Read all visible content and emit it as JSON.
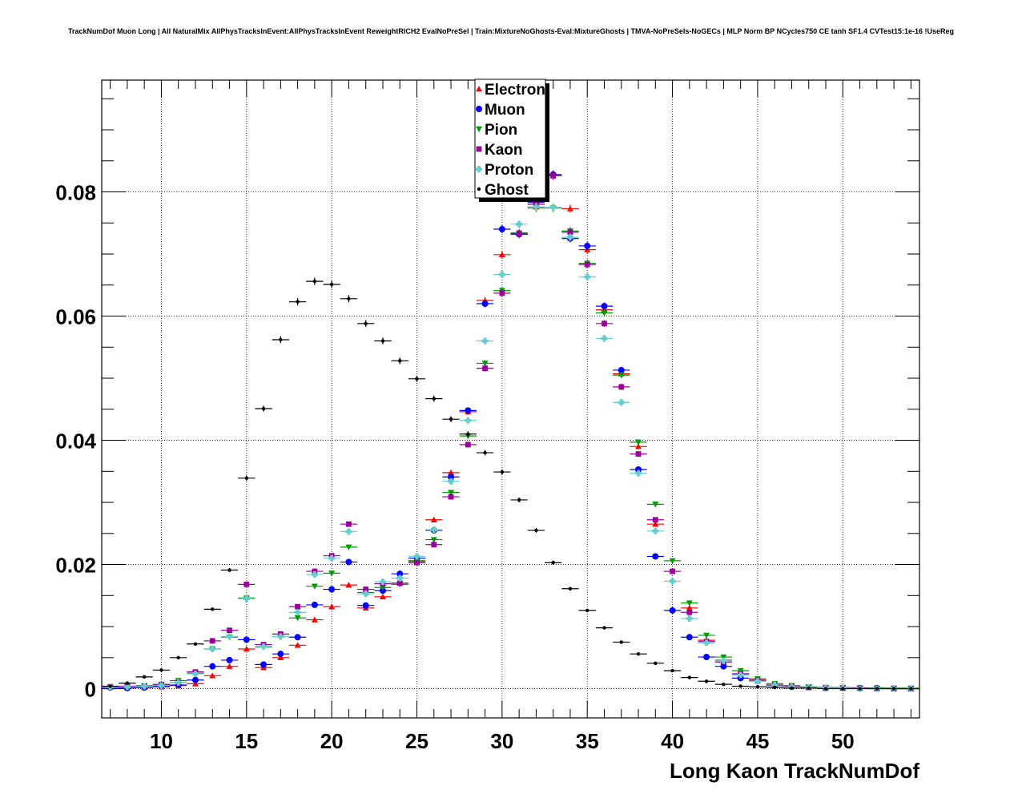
{
  "chart_data": {
    "type": "scatter",
    "title": "TrackNumDof Muon Long | All NaturalMix AllPhysTracksInEvent:AllPhysTracksInEvent ReweightRICH2 EvalNoPreSel | Train:MixtureNoGhosts-Eval:MixtureGhosts | TMVA-NoPreSels-NoGECs | MLP Norm BP NCycles750 CE tanh SF1.4 CVTest15:1e-16 !UseReg",
    "xlabel": "Long Kaon TrackNumDof",
    "ylabel": "",
    "xlim": [
      6.5,
      54.5
    ],
    "ylim": [
      -0.0047,
      0.098
    ],
    "x_ticks": [
      10,
      15,
      20,
      25,
      30,
      35,
      40,
      45,
      50
    ],
    "y_ticks": [
      0,
      0.02,
      0.04,
      0.06,
      0.08
    ],
    "y_tick_labels": [
      "0",
      "0.02",
      "0.04",
      "0.06",
      "0.08"
    ],
    "grid": true,
    "legend_position": "top-center",
    "x": [
      7,
      8,
      9,
      10,
      11,
      12,
      13,
      14,
      15,
      16,
      17,
      18,
      19,
      20,
      21,
      22,
      23,
      24,
      25,
      26,
      27,
      28,
      29,
      30,
      31,
      32,
      33,
      34,
      35,
      36,
      37,
      38,
      39,
      40,
      41,
      42,
      43,
      44,
      45,
      46,
      47,
      48,
      49,
      50,
      51,
      52,
      53,
      54
    ],
    "series": [
      {
        "name": "Electron",
        "color": "#ff0000",
        "marker": "triangle-up",
        "values": [
          0.0003,
          0.0002,
          0.0002,
          0.0003,
          0.0005,
          0.0008,
          0.0021,
          0.0036,
          0.0064,
          0.0034,
          0.005,
          0.007,
          0.0111,
          0.0132,
          0.0167,
          0.013,
          0.0148,
          0.017,
          0.0206,
          0.0272,
          0.0348,
          0.0446,
          0.0625,
          0.0699,
          0.0732,
          0.0776,
          0.0826,
          0.0773,
          0.0707,
          0.061,
          0.0507,
          0.039,
          0.0265,
          0.0189,
          0.013,
          0.0078,
          0.0046,
          0.0024,
          0.0014,
          0.0007,
          0.0004,
          0.0002,
          0.0002,
          0.0001,
          0.0001,
          0.0001,
          0.0001,
          0.0
        ]
      },
      {
        "name": "Muon",
        "color": "#0000ff",
        "marker": "circle",
        "values": [
          0.0002,
          0.0001,
          0.0002,
          0.0004,
          0.0006,
          0.0014,
          0.0036,
          0.0046,
          0.0079,
          0.0039,
          0.0056,
          0.0083,
          0.0135,
          0.016,
          0.0204,
          0.0134,
          0.0158,
          0.0185,
          0.021,
          0.0255,
          0.0341,
          0.0448,
          0.062,
          0.074,
          0.0732,
          0.0783,
          0.0828,
          0.0725,
          0.0713,
          0.0616,
          0.0513,
          0.0353,
          0.0213,
          0.0126,
          0.0083,
          0.0051,
          0.0036,
          0.0017,
          0.0013,
          0.0005,
          0.0003,
          0.0002,
          0.0001,
          0.0001,
          0.0001,
          0.0001,
          0.0,
          0.0
        ]
      },
      {
        "name": "Pion",
        "color": "#009900",
        "marker": "triangle-down",
        "values": [
          0.0003,
          0.0004,
          0.0005,
          0.0007,
          0.0013,
          0.0025,
          0.0064,
          0.0083,
          0.0146,
          0.0067,
          0.0084,
          0.0114,
          0.0165,
          0.0186,
          0.0228,
          0.0155,
          0.0163,
          0.0168,
          0.0205,
          0.024,
          0.0316,
          0.0407,
          0.0524,
          0.0641,
          0.0734,
          0.0774,
          0.0774,
          0.0737,
          0.0685,
          0.0605,
          0.0505,
          0.0397,
          0.0297,
          0.0206,
          0.0138,
          0.0086,
          0.0051,
          0.0029,
          0.0016,
          0.0008,
          0.0005,
          0.0003,
          0.0002,
          0.0002,
          0.0001,
          0.0001,
          0.0001,
          0.0001
        ]
      },
      {
        "name": "Kaon",
        "color": "#990099",
        "marker": "square",
        "values": [
          0.0003,
          0.0004,
          0.0004,
          0.0006,
          0.001,
          0.0027,
          0.0077,
          0.0094,
          0.0168,
          0.0071,
          0.0088,
          0.0132,
          0.0189,
          0.0214,
          0.0265,
          0.016,
          0.0169,
          0.017,
          0.0203,
          0.0232,
          0.0309,
          0.0393,
          0.0516,
          0.0637,
          0.0733,
          0.078,
          0.0826,
          0.0735,
          0.0683,
          0.0588,
          0.0486,
          0.0378,
          0.0272,
          0.0189,
          0.0123,
          0.0076,
          0.0043,
          0.0024,
          0.0013,
          0.0006,
          0.0004,
          0.0002,
          0.0001,
          0.0001,
          0.0001,
          0.0,
          0.0,
          0.0
        ]
      },
      {
        "name": "Proton",
        "color": "#66cccc",
        "marker": "cross",
        "values": [
          0.0003,
          0.0003,
          0.0004,
          0.0005,
          0.001,
          0.0024,
          0.0064,
          0.0084,
          0.0145,
          0.0068,
          0.0084,
          0.0123,
          0.0184,
          0.021,
          0.0253,
          0.0153,
          0.0172,
          0.0178,
          0.0213,
          0.0256,
          0.0334,
          0.0432,
          0.056,
          0.0667,
          0.0748,
          0.0776,
          0.0775,
          0.0727,
          0.0663,
          0.0564,
          0.0461,
          0.0347,
          0.0254,
          0.0173,
          0.0113,
          0.0074,
          0.0045,
          0.0022,
          0.0012,
          0.0006,
          0.0003,
          0.0002,
          0.0001,
          0.0001,
          0.0,
          0.0,
          0.0,
          0.0
        ]
      },
      {
        "name": "Ghost",
        "color": "#000000",
        "marker": "dot",
        "values": [
          0.0004,
          0.0009,
          0.0019,
          0.003,
          0.005,
          0.0072,
          0.0128,
          0.0191,
          0.0339,
          0.0451,
          0.0562,
          0.0623,
          0.0656,
          0.0651,
          0.0628,
          0.0588,
          0.056,
          0.0528,
          0.0499,
          0.0467,
          0.0434,
          0.041,
          0.038,
          0.0349,
          0.0304,
          0.0255,
          0.0203,
          0.0161,
          0.0126,
          0.0098,
          0.0075,
          0.0056,
          0.0041,
          0.0029,
          0.0018,
          0.0012,
          0.0007,
          0.0004,
          0.0003,
          0.0002,
          0.0001,
          0.0001,
          0.0,
          0.0,
          0.0,
          0.0,
          0.0,
          0.0
        ]
      }
    ]
  }
}
